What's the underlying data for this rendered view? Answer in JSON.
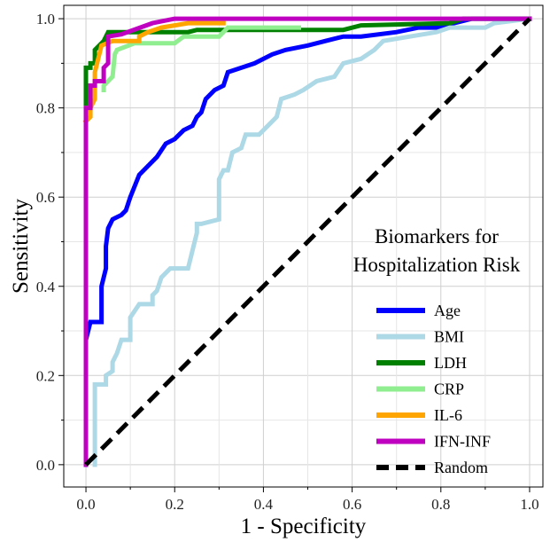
{
  "chart_data": {
    "type": "line",
    "xlabel": "1 - Specificity",
    "ylabel": "Sensitivity",
    "xlim": [
      -0.05,
      1.03
    ],
    "ylim": [
      -0.05,
      1.03
    ],
    "xticks": [
      "0.0",
      "0.2",
      "0.4",
      "0.6",
      "0.8",
      "1.0"
    ],
    "yticks": [
      "0.0",
      "0.2",
      "0.4",
      "0.6",
      "0.8",
      "1.0"
    ],
    "grid": true,
    "legend": {
      "title": "Biomarkers for\nHospitalization Risk",
      "placement": "bottom-right"
    },
    "series": [
      {
        "name": "Age",
        "color": "#0000ff",
        "points": [
          [
            0,
            0
          ],
          [
            0,
            0.27
          ],
          [
            0,
            0.28
          ],
          [
            0.01,
            0.32
          ],
          [
            0.035,
            0.32
          ],
          [
            0.035,
            0.4
          ],
          [
            0.045,
            0.44
          ],
          [
            0.045,
            0.49
          ],
          [
            0.05,
            0.53
          ],
          [
            0.06,
            0.55
          ],
          [
            0.08,
            0.56
          ],
          [
            0.09,
            0.57
          ],
          [
            0.1,
            0.6
          ],
          [
            0.12,
            0.65
          ],
          [
            0.14,
            0.67
          ],
          [
            0.16,
            0.69
          ],
          [
            0.18,
            0.72
          ],
          [
            0.2,
            0.73
          ],
          [
            0.22,
            0.75
          ],
          [
            0.24,
            0.76
          ],
          [
            0.25,
            0.78
          ],
          [
            0.26,
            0.79
          ],
          [
            0.27,
            0.82
          ],
          [
            0.29,
            0.84
          ],
          [
            0.31,
            0.85
          ],
          [
            0.32,
            0.88
          ],
          [
            0.35,
            0.89
          ],
          [
            0.38,
            0.9
          ],
          [
            0.42,
            0.92
          ],
          [
            0.45,
            0.93
          ],
          [
            0.5,
            0.94
          ],
          [
            0.54,
            0.95
          ],
          [
            0.58,
            0.96
          ],
          [
            0.62,
            0.96
          ],
          [
            0.7,
            0.97
          ],
          [
            0.75,
            0.98
          ],
          [
            0.8,
            0.98
          ],
          [
            0.83,
            0.99
          ],
          [
            0.87,
            1.0
          ],
          [
            1.0,
            1.0
          ]
        ]
      },
      {
        "name": "BMI",
        "color": "#add8e6",
        "points": [
          [
            0.02,
            0
          ],
          [
            0.02,
            0.18
          ],
          [
            0.045,
            0.18
          ],
          [
            0.045,
            0.2
          ],
          [
            0.06,
            0.21
          ],
          [
            0.06,
            0.23
          ],
          [
            0.07,
            0.25
          ],
          [
            0.08,
            0.28
          ],
          [
            0.1,
            0.28
          ],
          [
            0.1,
            0.33
          ],
          [
            0.12,
            0.36
          ],
          [
            0.15,
            0.36
          ],
          [
            0.15,
            0.38
          ],
          [
            0.16,
            0.39
          ],
          [
            0.17,
            0.42
          ],
          [
            0.19,
            0.44
          ],
          [
            0.23,
            0.44
          ],
          [
            0.24,
            0.48
          ],
          [
            0.25,
            0.52
          ],
          [
            0.25,
            0.54
          ],
          [
            0.26,
            0.54
          ],
          [
            0.3,
            0.55
          ],
          [
            0.3,
            0.64
          ],
          [
            0.31,
            0.66
          ],
          [
            0.32,
            0.66
          ],
          [
            0.33,
            0.7
          ],
          [
            0.35,
            0.71
          ],
          [
            0.36,
            0.74
          ],
          [
            0.39,
            0.74
          ],
          [
            0.41,
            0.76
          ],
          [
            0.43,
            0.78
          ],
          [
            0.44,
            0.82
          ],
          [
            0.47,
            0.83
          ],
          [
            0.49,
            0.84
          ],
          [
            0.52,
            0.86
          ],
          [
            0.56,
            0.87
          ],
          [
            0.58,
            0.9
          ],
          [
            0.62,
            0.91
          ],
          [
            0.65,
            0.93
          ],
          [
            0.67,
            0.95
          ],
          [
            0.73,
            0.96
          ],
          [
            0.79,
            0.97
          ],
          [
            0.82,
            0.98
          ],
          [
            0.9,
            0.98
          ],
          [
            0.92,
            0.99
          ],
          [
            1.0,
            1.0
          ]
        ]
      },
      {
        "name": "LDH",
        "color": "#008000",
        "points": [
          [
            0,
            0.81
          ],
          [
            0,
            0.89
          ],
          [
            0.01,
            0.89
          ],
          [
            0.01,
            0.9
          ],
          [
            0.02,
            0.9
          ],
          [
            0.02,
            0.93
          ],
          [
            0.03,
            0.94
          ],
          [
            0.04,
            0.95
          ],
          [
            0.05,
            0.97
          ],
          [
            0.23,
            0.97
          ],
          [
            0.25,
            0.975
          ],
          [
            0.48,
            0.975
          ],
          [
            0.58,
            0.975
          ],
          [
            0.62,
            0.985
          ],
          [
            0.82,
            0.99
          ],
          [
            0.85,
            1.0
          ],
          [
            1.0,
            1.0
          ]
        ]
      },
      {
        "name": "CRP",
        "color": "#90ee90",
        "points": [
          [
            0.04,
            0.84
          ],
          [
            0.04,
            0.85
          ],
          [
            0.05,
            0.86
          ],
          [
            0.06,
            0.87
          ],
          [
            0.065,
            0.92
          ],
          [
            0.07,
            0.93
          ],
          [
            0.11,
            0.945
          ],
          [
            0.2,
            0.945
          ],
          [
            0.22,
            0.96
          ],
          [
            0.3,
            0.96
          ],
          [
            0.32,
            0.98
          ],
          [
            0.48,
            0.98
          ]
        ]
      },
      {
        "name": "IL-6",
        "color": "#ffa500",
        "points": [
          [
            0,
            0.77
          ],
          [
            0.01,
            0.78
          ],
          [
            0.01,
            0.8
          ],
          [
            0.02,
            0.82
          ],
          [
            0.02,
            0.88
          ],
          [
            0.035,
            0.94
          ],
          [
            0.06,
            0.95
          ],
          [
            0.12,
            0.95
          ],
          [
            0.12,
            0.96
          ],
          [
            0.14,
            0.97
          ],
          [
            0.17,
            0.98
          ],
          [
            0.23,
            0.99
          ],
          [
            0.31,
            0.99
          ]
        ]
      },
      {
        "name": "IFN-INF",
        "color": "#c000c0",
        "points": [
          [
            0,
            0
          ],
          [
            0,
            0.8
          ],
          [
            0.01,
            0.8
          ],
          [
            0.01,
            0.85
          ],
          [
            0.02,
            0.85
          ],
          [
            0.02,
            0.86
          ],
          [
            0.04,
            0.86
          ],
          [
            0.04,
            0.89
          ],
          [
            0.05,
            0.9
          ],
          [
            0.05,
            0.96
          ],
          [
            0.08,
            0.965
          ],
          [
            0.15,
            0.99
          ],
          [
            0.2,
            1.0
          ],
          [
            1.0,
            1.0
          ]
        ]
      },
      {
        "name": "Random",
        "color": "#000000",
        "dashed": true,
        "points": [
          [
            0,
            0
          ],
          [
            1,
            1
          ]
        ]
      }
    ]
  }
}
